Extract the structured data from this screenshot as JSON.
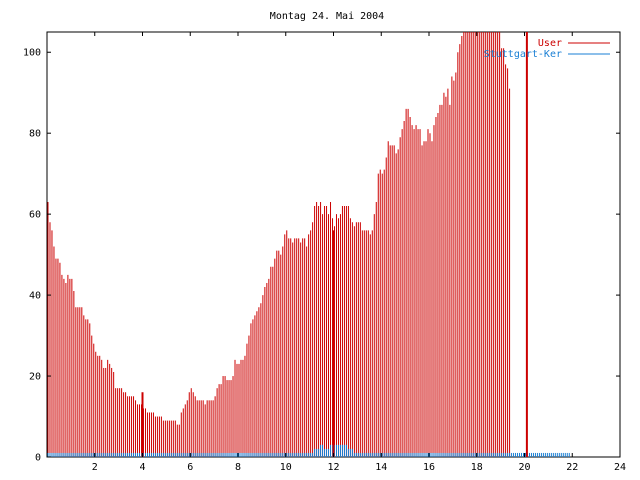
{
  "chart_data": {
    "type": "bar",
    "title": "Montag 24. Mai 2004",
    "xlabel": "",
    "ylabel": "",
    "xlim": [
      0,
      24
    ],
    "ylim": [
      0,
      105
    ],
    "x_ticks": [
      2,
      4,
      6,
      8,
      10,
      12,
      14,
      16,
      18,
      20,
      22,
      24
    ],
    "y_ticks": [
      0,
      20,
      40,
      60,
      80,
      100
    ],
    "grid": false,
    "legend_position": "top-right",
    "bins_per_hour": 12,
    "series": [
      {
        "name": "User",
        "color": "#cc0000",
        "values": [
          63,
          58,
          56,
          52,
          49,
          49,
          48,
          45,
          44,
          43,
          45,
          44,
          44,
          41,
          37,
          37,
          37,
          37,
          35,
          34,
          34,
          33,
          30,
          28,
          26,
          25,
          25,
          24,
          22,
          22,
          24,
          23,
          22,
          21,
          17,
          17,
          17,
          17,
          16,
          16,
          15,
          15,
          15,
          15,
          14,
          13,
          13,
          13,
          12,
          12,
          11,
          11,
          11,
          11,
          10,
          10,
          10,
          10,
          9,
          9,
          9,
          9,
          9,
          9,
          9,
          8,
          8,
          11,
          12,
          13,
          14,
          16,
          17,
          16,
          15,
          14,
          14,
          14,
          14,
          13,
          14,
          14,
          14,
          14,
          15,
          17,
          18,
          18,
          20,
          20,
          19,
          19,
          19,
          20,
          24,
          23,
          23,
          24,
          24,
          25,
          28,
          30,
          33,
          34,
          35,
          36,
          37,
          38,
          40,
          42,
          43,
          44,
          47,
          47,
          49,
          51,
          51,
          50,
          52,
          55,
          56,
          54,
          54,
          53,
          54,
          54,
          54,
          53,
          54,
          54,
          52,
          55,
          56,
          58,
          62,
          63,
          62,
          63,
          60,
          62,
          62,
          60,
          63,
          59,
          57,
          60,
          59,
          60,
          62,
          62,
          62,
          62,
          59,
          58,
          57,
          58,
          58,
          58,
          56,
          56,
          56,
          56,
          55,
          56,
          60,
          63,
          70,
          71,
          70,
          71,
          74,
          78,
          77,
          77,
          77,
          75,
          76,
          79,
          81,
          83,
          86,
          86,
          84,
          82,
          81,
          82,
          81,
          81,
          77,
          78,
          78,
          81,
          80,
          78,
          82,
          84,
          85,
          87,
          87,
          90,
          89,
          91,
          87,
          94,
          93,
          95,
          100,
          102,
          104,
          105,
          105,
          105,
          105,
          105,
          105,
          105,
          105,
          105,
          105,
          105,
          105,
          105,
          105,
          105,
          105,
          105,
          105,
          105,
          101,
          101,
          97,
          96,
          91
        ]
      },
      {
        "name": "Stuttgart-Ker",
        "color": "#1a7fd4",
        "values": [
          1,
          1,
          1,
          1,
          1,
          1,
          1,
          1,
          1,
          1,
          1,
          1,
          1,
          1,
          1,
          1,
          1,
          1,
          1,
          1,
          1,
          1,
          1,
          1,
          1,
          1,
          1,
          1,
          1,
          1,
          1,
          1,
          1,
          1,
          1,
          1,
          1,
          1,
          1,
          1,
          1,
          1,
          1,
          1,
          1,
          1,
          1,
          1,
          1,
          1,
          1,
          1,
          1,
          1,
          1,
          1,
          1,
          1,
          1,
          1,
          1,
          1,
          1,
          1,
          1,
          1,
          1,
          1,
          1,
          1,
          1,
          1,
          1,
          1,
          1,
          1,
          1,
          1,
          1,
          1,
          1,
          1,
          1,
          1,
          1,
          1,
          1,
          1,
          1,
          1,
          1,
          1,
          1,
          1,
          1,
          1,
          1,
          1,
          1,
          1,
          1,
          1,
          1,
          1,
          1,
          1,
          1,
          1,
          1,
          1,
          1,
          1,
          1,
          1,
          1,
          1,
          1,
          1,
          1,
          1,
          1,
          1,
          1,
          1,
          1,
          1,
          1,
          1,
          1,
          1,
          1,
          1,
          1,
          1,
          2,
          2,
          2,
          3,
          3,
          2,
          2,
          2,
          3,
          3,
          3,
          3,
          3,
          3,
          3,
          3,
          3,
          2,
          2,
          2,
          1,
          1,
          1,
          1,
          1,
          1,
          1,
          1,
          1,
          1,
          1,
          1,
          1,
          1,
          1,
          1,
          1,
          1,
          1,
          1,
          1,
          1,
          1,
          1,
          1,
          1,
          1,
          1,
          1,
          1,
          1,
          1,
          1,
          1,
          1,
          1,
          1,
          1,
          1,
          1,
          1,
          1,
          1,
          1,
          1,
          1,
          1,
          1,
          1,
          1,
          1,
          1,
          1,
          1,
          1,
          1,
          1,
          1,
          1,
          1,
          1,
          1,
          1,
          1,
          1,
          1,
          1,
          1,
          1,
          1,
          1,
          1,
          1,
          1,
          1,
          1,
          1,
          1,
          1,
          1,
          1,
          1,
          1,
          1,
          1,
          1,
          1,
          1,
          1,
          1,
          1,
          1,
          1,
          1,
          1,
          1,
          1,
          1,
          1,
          1,
          1,
          1,
          1,
          1,
          1,
          1,
          1,
          1,
          1
        ]
      }
    ],
    "markers": [
      {
        "x": 4.0,
        "value": 16,
        "color": "#cc0000"
      },
      {
        "x": 12.0,
        "value": 56,
        "color": "#cc0000"
      },
      {
        "x": 20.1,
        "value": 105,
        "color": "#cc0000"
      }
    ]
  }
}
